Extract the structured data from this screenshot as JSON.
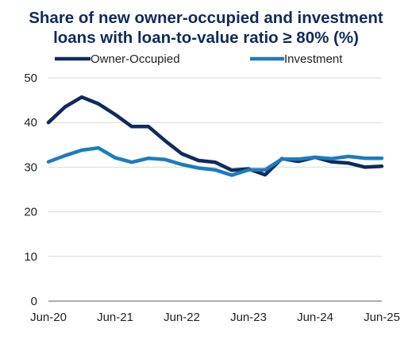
{
  "chart_data": {
    "type": "line",
    "title_line1": "Share of new owner-occupied and investment",
    "title_line2": "loans with  loan-to-value ratio ≥ 80% (%)",
    "xlabel": "",
    "ylabel": "",
    "ylim": [
      0,
      50
    ],
    "yticks": [
      0,
      10,
      20,
      30,
      40,
      50
    ],
    "x": [
      "Jun-20",
      "Sep-20",
      "Dec-20",
      "Mar-21",
      "Jun-21",
      "Sep-21",
      "Dec-21",
      "Mar-22",
      "Jun-22",
      "Sep-22",
      "Dec-22",
      "Mar-23",
      "Jun-23",
      "Sep-23",
      "Dec-23",
      "Mar-24",
      "Jun-24",
      "Sep-24",
      "Dec-24",
      "Mar-25",
      "Jun-25"
    ],
    "xtick_labels": [
      "Jun-20",
      "Jun-21",
      "Jun-22",
      "Jun-23",
      "Jun-24",
      "Jun-25"
    ],
    "xtick_indices": [
      0,
      4,
      8,
      12,
      16,
      20
    ],
    "grid": true,
    "legend_position": "top",
    "series": [
      {
        "name": "Owner-Occupied",
        "color": "#0f2a5c",
        "values": [
          40.0,
          43.5,
          45.7,
          44.2,
          41.8,
          39.1,
          39.1,
          35.9,
          33.0,
          31.5,
          31.1,
          29.3,
          29.6,
          28.3,
          31.9,
          31.3,
          32.2,
          31.2,
          30.9,
          30.0,
          30.2
        ]
      },
      {
        "name": "Investment",
        "color": "#1a7cc0",
        "values": [
          31.2,
          32.6,
          33.8,
          34.3,
          32.1,
          31.1,
          32.0,
          31.7,
          30.6,
          29.8,
          29.4,
          28.2,
          29.4,
          29.4,
          31.8,
          31.8,
          32.2,
          31.9,
          32.4,
          32.0,
          32.0
        ]
      }
    ]
  }
}
